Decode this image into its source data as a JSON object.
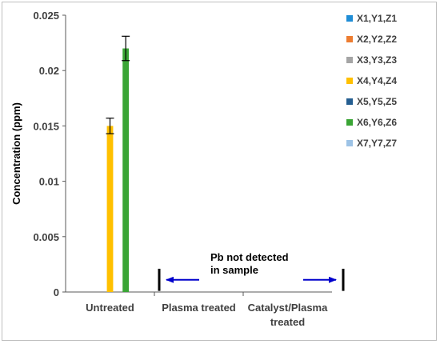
{
  "chart_data": {
    "type": "bar",
    "title": "",
    "xlabel": "",
    "ylabel": "Concentration (ppm)",
    "ylim": [
      0,
      0.025
    ],
    "yticks": [
      "0",
      "0.005",
      "0.01",
      "0.015",
      "0.02",
      "0.025"
    ],
    "grid": false,
    "legend_position": "right",
    "categories": [
      [
        "Untreated"
      ],
      [
        "Plasma treated"
      ],
      [
        "Catalyst/Plasma",
        "treated"
      ]
    ],
    "series": [
      {
        "name": "X1,Y1,Z1",
        "color": "#1f8dd6",
        "values": [
          null,
          null,
          null
        ]
      },
      {
        "name": "X2,Y2,Z2",
        "color": "#ed7d31",
        "values": [
          null,
          null,
          null
        ]
      },
      {
        "name": "X3,Y3,Z3",
        "color": "#a5a5a5",
        "values": [
          null,
          null,
          null
        ]
      },
      {
        "name": "X4,Y4,Z4",
        "color": "#ffc000",
        "values": [
          0.015,
          null,
          null
        ],
        "errors": [
          0.0007,
          null,
          null
        ]
      },
      {
        "name": "X5,Y5,Z5",
        "color": "#255e91",
        "values": [
          null,
          null,
          null
        ]
      },
      {
        "name": "X6,Y6,Z6",
        "color": "#3aa535",
        "values": [
          0.022,
          null,
          null
        ],
        "errors": [
          0.0011,
          null,
          null
        ]
      },
      {
        "name": "X7,Y7,Z7",
        "color": "#9dc3e6",
        "values": [
          null,
          null,
          null
        ]
      }
    ],
    "annotation": {
      "lines": [
        "Pb not detected",
        "in sample"
      ],
      "span_categories": [
        1,
        2
      ],
      "arrow_color": "#0000cc"
    }
  }
}
